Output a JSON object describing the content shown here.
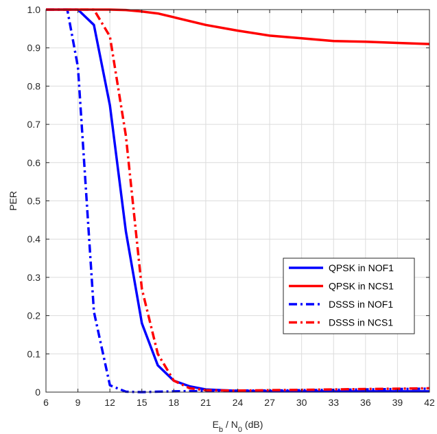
{
  "chart_data": {
    "type": "line",
    "title": "",
    "xlabel": {
      "prefix": "E",
      "sub1": "b",
      "mid": " / N",
      "sub2": "0",
      "suffix": "  (dB)"
    },
    "ylabel": "PER",
    "xlim": [
      6,
      42
    ],
    "ylim": [
      0,
      1
    ],
    "xticks": [
      6,
      9,
      12,
      15,
      18,
      21,
      24,
      27,
      30,
      33,
      36,
      39,
      42
    ],
    "yticks": [
      0,
      0.1,
      0.2,
      0.3,
      0.4,
      0.5,
      0.6,
      0.7,
      0.8,
      0.9,
      1
    ],
    "ytick_labels": [
      "0",
      "0.1",
      "0.2",
      "0.3",
      "0.4",
      "0.5",
      "0.6",
      "0.7",
      "0.8",
      "0.9",
      "1.0"
    ],
    "grid": true,
    "legend_position": "right",
    "series": [
      {
        "name": "QPSK in NOF1",
        "color": "#0000ff",
        "dash": "solid",
        "x": [
          6,
          7.5,
          9,
          10.5,
          12,
          13.5,
          15,
          16.5,
          18,
          19.5,
          21,
          24,
          27,
          30,
          33,
          36,
          39,
          42
        ],
        "y": [
          1.0,
          1.0,
          1.0,
          0.96,
          0.75,
          0.42,
          0.18,
          0.07,
          0.03,
          0.015,
          0.007,
          0.003,
          0.002,
          0.002,
          0.002,
          0.002,
          0.002,
          0.002
        ]
      },
      {
        "name": "QPSK in NCS1",
        "color": "#ff0000",
        "dash": "solid",
        "x": [
          6,
          9,
          12,
          13.5,
          15,
          16.5,
          18,
          21,
          24,
          27,
          30,
          33,
          36,
          39,
          42
        ],
        "y": [
          1.0,
          1.0,
          1.0,
          0.999,
          0.995,
          0.99,
          0.98,
          0.96,
          0.945,
          0.932,
          0.925,
          0.918,
          0.916,
          0.913,
          0.91
        ]
      },
      {
        "name": "DSSS in NOF1",
        "color": "#0000ff",
        "dash": "dashdot",
        "x": [
          6,
          7.5,
          8,
          9,
          10.5,
          12,
          13.5,
          15,
          16.5,
          18,
          21,
          24,
          27,
          30,
          33,
          36,
          39,
          42
        ],
        "y": [
          1.0,
          1.0,
          1.0,
          0.85,
          0.21,
          0.018,
          0.001,
          0.0,
          0.001,
          0.002,
          0.003,
          0.004,
          0.004,
          0.005,
          0.006,
          0.007,
          0.008,
          0.009
        ]
      },
      {
        "name": "DSSS in NCS1",
        "color": "#ff0000",
        "dash": "dashdot",
        "x": [
          6,
          9,
          10.5,
          12,
          13.5,
          15,
          16.5,
          18,
          19.5,
          21,
          24,
          27,
          30,
          33,
          36,
          39,
          42
        ],
        "y": [
          1.0,
          1.0,
          1.0,
          0.93,
          0.67,
          0.27,
          0.1,
          0.03,
          0.01,
          0.005,
          0.004,
          0.005,
          0.006,
          0.007,
          0.008,
          0.009,
          0.01
        ]
      }
    ]
  }
}
